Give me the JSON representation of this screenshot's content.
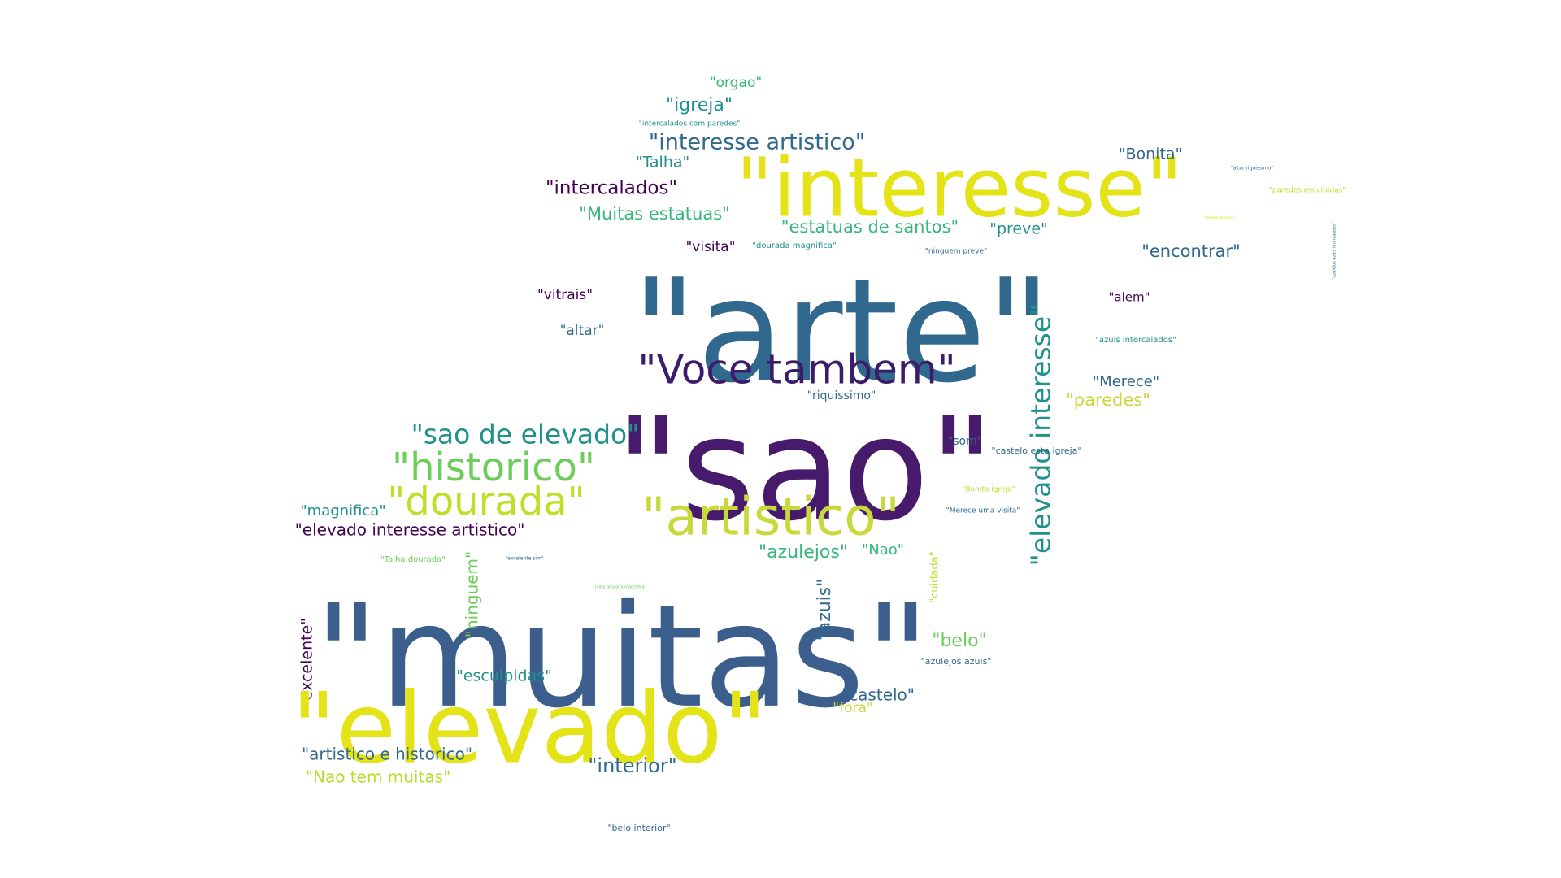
{
  "word_cloud": {
    "words": [
      {
        "text": "\"orgao\"",
        "color": "#35b779"
      },
      {
        "text": "\"igreja\"",
        "color": "#21918c"
      },
      {
        "text": "\"intercalados com paredes\"",
        "color": "#21918c"
      },
      {
        "text": "\"interesse artistico\"",
        "color": "#31688e"
      },
      {
        "text": "\"Talha\"",
        "color": "#21918c"
      },
      {
        "text": "\"interesse\"",
        "color": "#e3e318"
      },
      {
        "text": "\"Bonita\"",
        "color": "#31688e"
      },
      {
        "text": "\"intercalados\"",
        "color": "#440154"
      },
      {
        "text": "\"Muitas estatuas\"",
        "color": "#35b779"
      },
      {
        "text": "\"estatuas de santos\"",
        "color": "#35b779"
      },
      {
        "text": "\"preve\"",
        "color": "#21918c"
      },
      {
        "text": "\"arte\"",
        "color": "#31688e"
      },
      {
        "text": "\"visita\"",
        "color": "#440154"
      },
      {
        "text": "\"dourada magnifica\"",
        "color": "#21918c"
      },
      {
        "text": "\"ninguem preve\"",
        "color": "#31688e"
      },
      {
        "text": "\"encontrar\"",
        "color": "#31688e"
      },
      {
        "text": "\"vitrais\"",
        "color": "#440154"
      },
      {
        "text": "\"alem\"",
        "color": "#440154"
      },
      {
        "text": "\"altar\"",
        "color": "#31688e"
      },
      {
        "text": "\"azuis intercalados\"",
        "color": "#21918c"
      },
      {
        "text": "\"Voce tambem\"",
        "color": "#3b1c6b"
      },
      {
        "text": "\"Merece\"",
        "color": "#31688e"
      },
      {
        "text": "\"riquissimo\"",
        "color": "#31688e"
      },
      {
        "text": "\"paredes\"",
        "color": "#c8d93a"
      },
      {
        "text": "\"sao\"",
        "color": "#481a6c"
      },
      {
        "text": "\"sao de elevado\"",
        "color": "#21918c"
      },
      {
        "text": "\"elevado interesse\"",
        "color": "#21918c"
      },
      {
        "text": "\"som\"",
        "color": "#31688e"
      },
      {
        "text": "\"castelo esta igreja\"",
        "color": "#31688e"
      },
      {
        "text": "\"historico\"",
        "color": "#6ccd5a"
      },
      {
        "text": "\"dourada\"",
        "color": "#bddf26"
      },
      {
        "text": "\"artistico\"",
        "color": "#c8d93a"
      },
      {
        "text": "\"Bonita igreja\"",
        "color": "#b5de2b"
      },
      {
        "text": "\"magnifica\"",
        "color": "#21918c"
      },
      {
        "text": "\"Merece uma visita\"",
        "color": "#31688e"
      },
      {
        "text": "\"elevado interesse artistico\"",
        "color": "#440154"
      },
      {
        "text": "\"azulejos\"",
        "color": "#35b779"
      },
      {
        "text": "\"Nao\"",
        "color": "#35b779"
      },
      {
        "text": "\"Talha dourada\"",
        "color": "#6ccd5a"
      },
      {
        "text": "\"excelente sim\"",
        "color": "#31688e"
      },
      {
        "text": "\"Talha dourada magnifica\"",
        "color": "#6ccd5a"
      },
      {
        "text": "\"cuidada\"",
        "color": "#c8d93a"
      },
      {
        "text": "\"muitas\"",
        "color": "#3b5e8c"
      },
      {
        "text": "\"ninguem\"",
        "color": "#6ccd5a"
      },
      {
        "text": "\"azuis\"",
        "color": "#31688e"
      },
      {
        "text": "\"excelente\"",
        "color": "#440154"
      },
      {
        "text": "\"belo\"",
        "color": "#6ccd5a"
      },
      {
        "text": "\"azulejos azuis\"",
        "color": "#31688e"
      },
      {
        "text": "\"esculpidas\"",
        "color": "#21918c"
      },
      {
        "text": "\"elevado\"",
        "color": "#e3e318"
      },
      {
        "text": "\"castelo\"",
        "color": "#31688e"
      },
      {
        "text": "\"fora\"",
        "color": "#c8d93a"
      },
      {
        "text": "\"artistico e historico\"",
        "color": "#31688e"
      },
      {
        "text": "\"interior\"",
        "color": "#31688e"
      },
      {
        "text": "\"Nao tem muitas\"",
        "color": "#b5de2b"
      },
      {
        "text": "\"belo interior\"",
        "color": "#31688e"
      },
      {
        "text": "\"altar riquissimo\"",
        "color": "#31688e"
      },
      {
        "text": "\"paredes esculpidas\"",
        "color": "#bddf26"
      },
      {
        "text": "\"elevado interesse\"",
        "color": "#e3e318"
      },
      {
        "text": "\"azulejos azuis intercalados\"",
        "color": "#31688e"
      }
    ]
  }
}
